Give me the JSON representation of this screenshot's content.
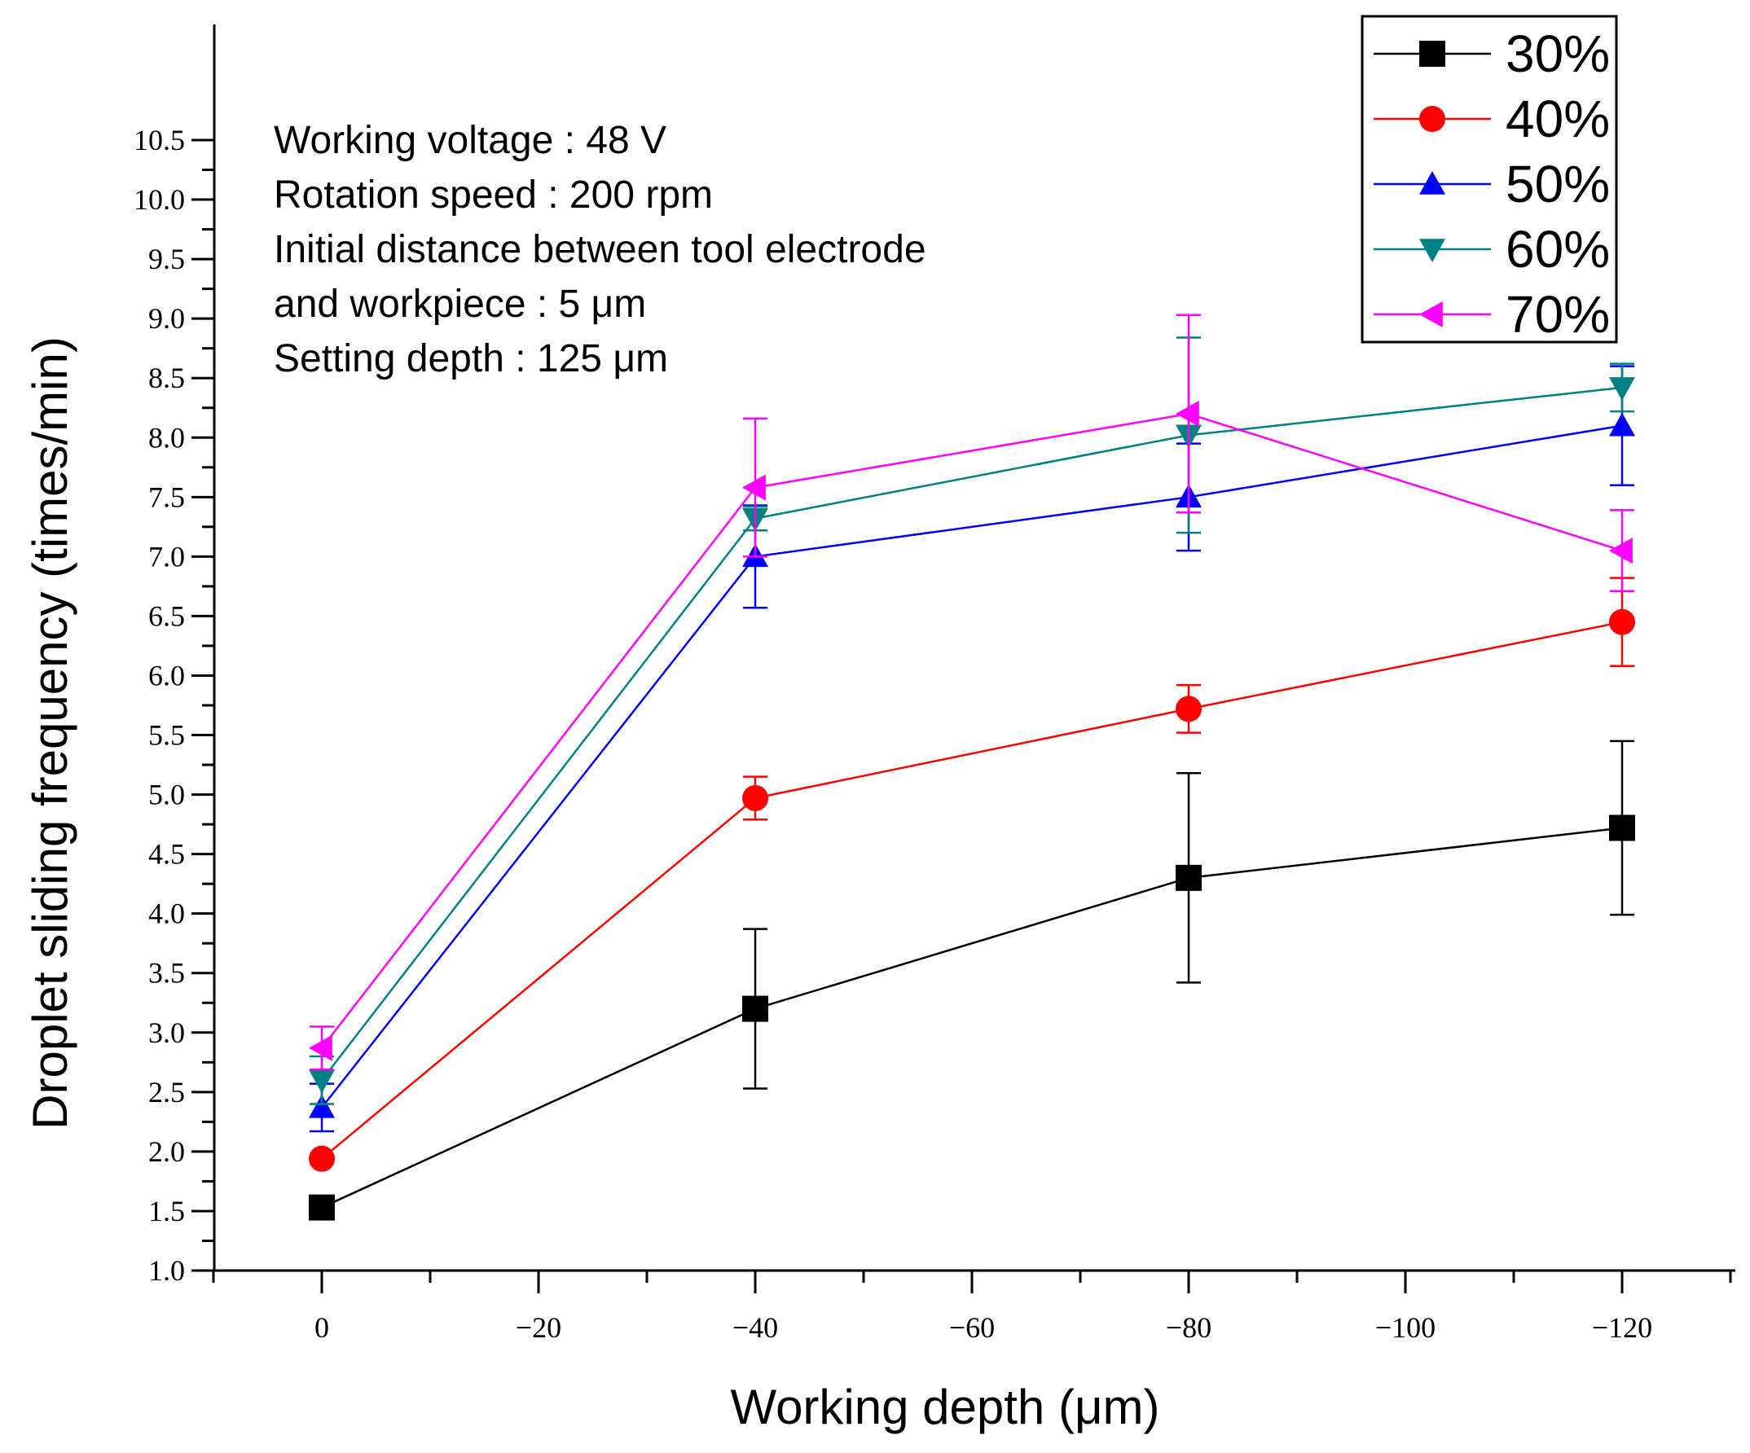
{
  "chart_data": {
    "type": "line",
    "title": "",
    "xlabel": "Working depth (μm)",
    "ylabel": "Droplet sliding frequency (times/min)",
    "x": [
      0,
      -40,
      -80,
      -120
    ],
    "xlim": [
      10,
      -130
    ],
    "ylim": [
      1.0,
      10.5
    ],
    "x_ticks": [
      "0",
      "−20",
      "−40",
      "−60",
      "−80",
      "−100",
      "−120"
    ],
    "y_ticks": [
      "1.0",
      "1.5",
      "2.0",
      "2.5",
      "3.0",
      "3.5",
      "4.0",
      "4.5",
      "5.0",
      "5.5",
      "6.0",
      "6.5",
      "7.0",
      "7.5",
      "8.0",
      "8.5",
      "9.0",
      "9.5",
      "10.0",
      "10.5"
    ],
    "grid": false,
    "legend_position": "top-right",
    "annotations": [
      "Working voltage : 48 V",
      "Rotation speed : 200 rpm",
      "Initial distance between tool electrode",
      "and workpiece : 5 μm",
      "Setting depth : 125 μm"
    ],
    "series": [
      {
        "name": "30%",
        "color": "#000000",
        "marker": "square",
        "values": [
          1.53,
          3.2,
          4.3,
          4.72
        ],
        "errors": [
          0.0,
          0.67,
          0.88,
          0.73
        ]
      },
      {
        "name": "40%",
        "color": "#ff0000",
        "marker": "circle",
        "values": [
          1.94,
          4.97,
          5.72,
          6.45
        ],
        "errors": [
          0.0,
          0.18,
          0.2,
          0.37
        ]
      },
      {
        "name": "50%",
        "color": "#0000ff",
        "marker": "triangle-up",
        "values": [
          2.37,
          7.0,
          7.5,
          8.1
        ],
        "errors": [
          0.2,
          0.43,
          0.45,
          0.5
        ]
      },
      {
        "name": "60%",
        "color": "#008080",
        "marker": "triangle-down",
        "values": [
          2.6,
          7.32,
          8.02,
          8.42
        ],
        "errors": [
          0.2,
          0.1,
          0.82,
          0.2
        ]
      },
      {
        "name": "70%",
        "color": "#ff00ff",
        "marker": "triangle-left",
        "values": [
          2.87,
          7.58,
          8.2,
          7.05
        ],
        "errors": [
          0.18,
          0.58,
          0.83,
          0.34
        ]
      }
    ]
  }
}
